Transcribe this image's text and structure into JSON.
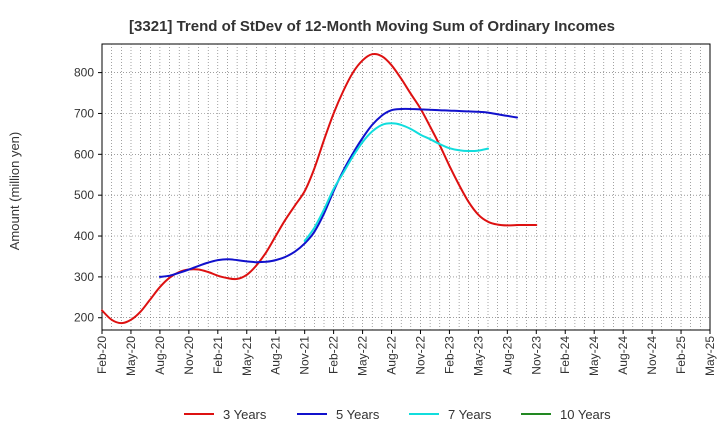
{
  "chart_data": {
    "type": "line",
    "title": "[3321]  Trend of StDev of 12-Month Moving Sum of Ordinary Incomes",
    "xlabel": "",
    "ylabel": "Amount (million yen)",
    "ylim": [
      170,
      870
    ],
    "yticks": [
      200,
      300,
      400,
      500,
      600,
      700,
      800
    ],
    "x_tick_labels": [
      "Feb-20",
      "May-20",
      "Aug-20",
      "Nov-20",
      "Feb-21",
      "May-21",
      "Aug-21",
      "Nov-21",
      "Feb-22",
      "May-22",
      "Aug-22",
      "Nov-22",
      "Feb-23",
      "May-23",
      "Aug-23",
      "Nov-23",
      "Feb-24",
      "May-24",
      "Aug-24",
      "Nov-24",
      "Feb-25",
      "May-25"
    ],
    "grid": true,
    "legend_position": "bottom",
    "series": [
      {
        "name": "3 Years",
        "color": "#dd1111",
        "points": [
          [
            0,
            218
          ],
          [
            1,
            195
          ],
          [
            2,
            187
          ],
          [
            3,
            195
          ],
          [
            4,
            215
          ],
          [
            5,
            245
          ],
          [
            6,
            275
          ],
          [
            7,
            298
          ],
          [
            8,
            312
          ],
          [
            9,
            318
          ],
          [
            10,
            318
          ],
          [
            11,
            312
          ],
          [
            12,
            303
          ],
          [
            13,
            297
          ],
          [
            14,
            295
          ],
          [
            15,
            305
          ],
          [
            16,
            328
          ],
          [
            17,
            360
          ],
          [
            18,
            400
          ],
          [
            19,
            440
          ],
          [
            20,
            475
          ],
          [
            21,
            510
          ],
          [
            22,
            565
          ],
          [
            23,
            635
          ],
          [
            24,
            700
          ],
          [
            25,
            755
          ],
          [
            26,
            800
          ],
          [
            27,
            830
          ],
          [
            28,
            845
          ],
          [
            29,
            840
          ],
          [
            30,
            818
          ],
          [
            31,
            785
          ],
          [
            32,
            748
          ],
          [
            33,
            712
          ],
          [
            34,
            668
          ],
          [
            35,
            622
          ],
          [
            36,
            572
          ],
          [
            37,
            525
          ],
          [
            38,
            483
          ],
          [
            39,
            452
          ],
          [
            40,
            435
          ],
          [
            41,
            428
          ],
          [
            42,
            426
          ],
          [
            43,
            427
          ],
          [
            44,
            427
          ],
          [
            45,
            427
          ]
        ]
      },
      {
        "name": "5 Years",
        "color": "#1111cc",
        "points": [
          [
            6,
            300
          ],
          [
            7,
            303
          ],
          [
            8,
            310
          ],
          [
            9,
            318
          ],
          [
            10,
            327
          ],
          [
            11,
            335
          ],
          [
            12,
            341
          ],
          [
            13,
            343
          ],
          [
            14,
            341
          ],
          [
            15,
            338
          ],
          [
            16,
            336
          ],
          [
            17,
            337
          ],
          [
            18,
            341
          ],
          [
            19,
            349
          ],
          [
            20,
            362
          ],
          [
            21,
            382
          ],
          [
            22,
            410
          ],
          [
            23,
            455
          ],
          [
            24,
            510
          ],
          [
            25,
            560
          ],
          [
            26,
            602
          ],
          [
            27,
            640
          ],
          [
            28,
            672
          ],
          [
            29,
            695
          ],
          [
            30,
            708
          ],
          [
            31,
            711
          ],
          [
            32,
            711
          ],
          [
            33,
            710
          ],
          [
            34,
            709
          ],
          [
            35,
            708
          ],
          [
            36,
            707
          ],
          [
            37,
            706
          ],
          [
            38,
            705
          ],
          [
            39,
            704
          ],
          [
            40,
            702
          ],
          [
            41,
            698
          ],
          [
            42,
            694
          ],
          [
            43,
            690
          ]
        ]
      },
      {
        "name": "7 Years",
        "color": "#11dddd",
        "points": [
          [
            21,
            388
          ],
          [
            22,
            420
          ],
          [
            23,
            465
          ],
          [
            24,
            515
          ],
          [
            25,
            555
          ],
          [
            26,
            595
          ],
          [
            27,
            630
          ],
          [
            28,
            656
          ],
          [
            29,
            672
          ],
          [
            30,
            676
          ],
          [
            31,
            672
          ],
          [
            32,
            662
          ],
          [
            33,
            648
          ],
          [
            34,
            637
          ],
          [
            35,
            625
          ],
          [
            36,
            615
          ],
          [
            37,
            610
          ],
          [
            38,
            608
          ],
          [
            39,
            609
          ],
          [
            40,
            614
          ]
        ]
      },
      {
        "name": "10 Years",
        "color": "#228822",
        "points": []
      }
    ]
  }
}
